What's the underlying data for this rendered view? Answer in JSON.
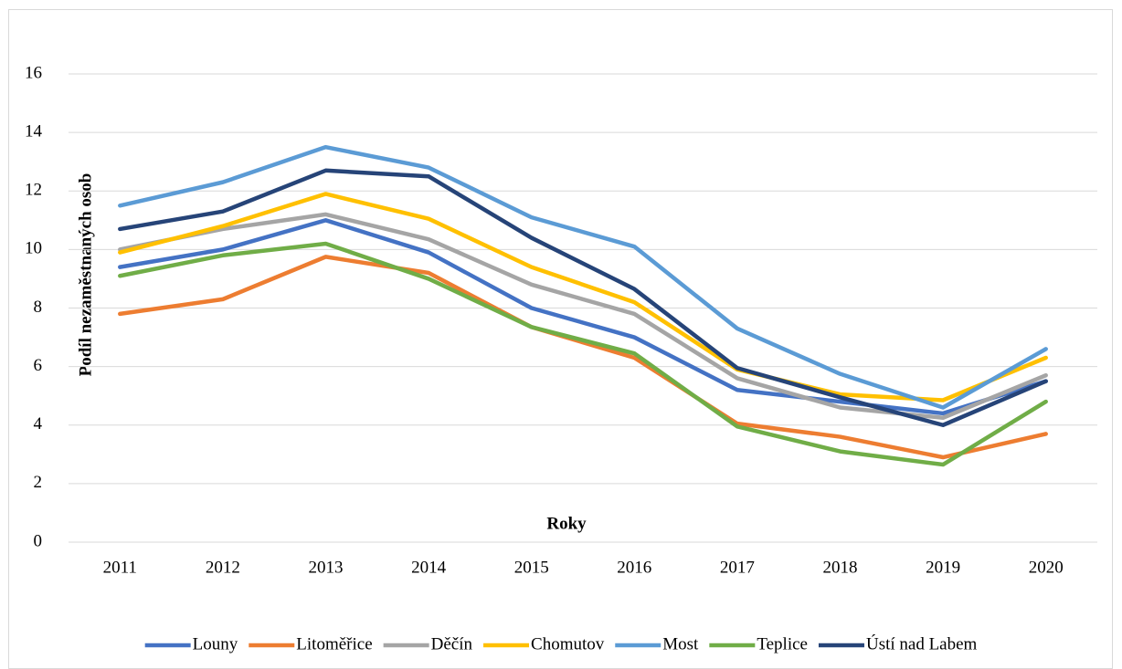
{
  "chart_data": {
    "type": "line",
    "x_label": "Roky",
    "y_label": "Podíl nezaměstnaných osob",
    "categories": [
      "2011",
      "2012",
      "2013",
      "2014",
      "2015",
      "2016",
      "2017",
      "2018",
      "2019",
      "2020"
    ],
    "series": [
      {
        "name": "Louny",
        "color": "#4472c4",
        "values": [
          9.4,
          10.0,
          11.0,
          9.9,
          8.0,
          7.0,
          5.2,
          4.8,
          4.4,
          5.5
        ]
      },
      {
        "name": "Litoměřice",
        "color": "#ed7d31",
        "values": [
          7.8,
          8.3,
          9.75,
          9.2,
          7.35,
          6.3,
          4.05,
          3.6,
          2.9,
          3.7
        ]
      },
      {
        "name": "Děčín",
        "color": "#a5a5a5",
        "values": [
          10.0,
          10.7,
          11.2,
          10.35,
          8.8,
          7.8,
          5.6,
          4.6,
          4.25,
          5.7
        ]
      },
      {
        "name": "Chomutov",
        "color": "#ffc000",
        "values": [
          9.9,
          10.8,
          11.9,
          11.05,
          9.4,
          8.2,
          5.9,
          5.05,
          4.85,
          6.3
        ]
      },
      {
        "name": "Most",
        "color": "#5b9bd5",
        "values": [
          11.5,
          12.3,
          13.5,
          12.8,
          11.1,
          10.1,
          7.3,
          5.75,
          4.6,
          6.6
        ]
      },
      {
        "name": "Teplice",
        "color": "#70ad47",
        "values": [
          9.1,
          9.8,
          10.2,
          9.0,
          7.35,
          6.45,
          3.95,
          3.1,
          2.65,
          4.8
        ]
      },
      {
        "name": "Ústí nad Labem",
        "color": "#264478",
        "values": [
          10.7,
          11.3,
          12.7,
          12.5,
          10.4,
          8.65,
          5.95,
          4.95,
          4.0,
          5.5
        ]
      }
    ],
    "ylim": [
      0,
      16
    ],
    "yticks": [
      0,
      2,
      4,
      6,
      8,
      10,
      12,
      14,
      16
    ],
    "grid": true,
    "legend": "bottom"
  }
}
